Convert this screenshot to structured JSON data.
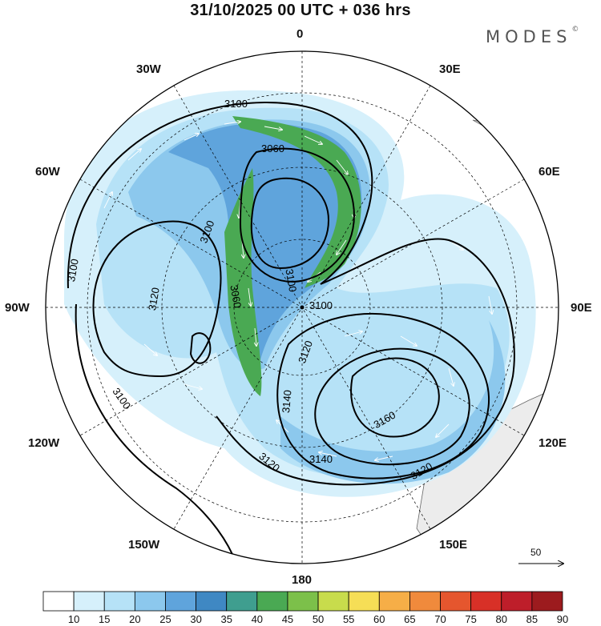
{
  "header": {
    "title": "31/10/2025  00 UTC  + 036 hrs",
    "brand": "MODES",
    "brand_mark": "©"
  },
  "map": {
    "projection": "polar-stereographic-south",
    "longitude_labels": [
      "0",
      "30E",
      "60E",
      "90E",
      "120E",
      "150E",
      "180",
      "150W",
      "120W",
      "90W",
      "60W",
      "30W"
    ],
    "contour_labels": [
      "3100",
      "3060",
      "3100",
      "3100",
      "3120",
      "3100",
      "3100",
      "3120",
      "3140",
      "3160",
      "3140",
      "3120",
      "3120",
      "3100",
      "3060"
    ],
    "reference_vector": {
      "label": "50"
    }
  },
  "colorbar": {
    "levels": [
      "10",
      "15",
      "20",
      "25",
      "30",
      "35",
      "40",
      "45",
      "50",
      "55",
      "60",
      "65",
      "70",
      "75",
      "80",
      "85",
      "90"
    ],
    "colors": [
      "#ffffff",
      "#d6f0fb",
      "#b6e2f7",
      "#8cc8ed",
      "#5fa4dc",
      "#3f88c3",
      "#3f9e8f",
      "#4aa953",
      "#7cc04a",
      "#c8dc4c",
      "#f6de56",
      "#f6ae47",
      "#f08a3c",
      "#e5562e",
      "#d83027",
      "#be1e2a",
      "#9c1b1e"
    ]
  },
  "colors": {
    "land": "#ececec",
    "coast": "#666666",
    "contour": "#000000",
    "grid": "#000000"
  }
}
